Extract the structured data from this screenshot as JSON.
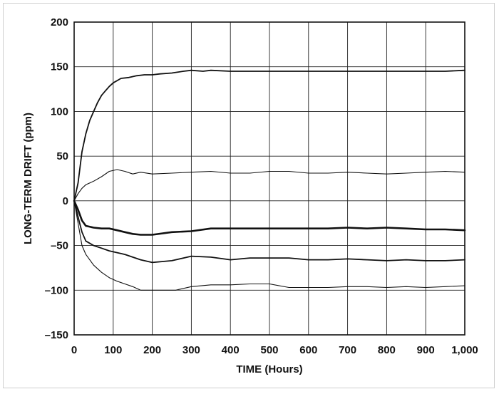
{
  "chart_data": {
    "type": "line",
    "title": "",
    "xlabel": "TIME (Hours)",
    "ylabel": "LONG-TERM DRIFT (ppm)",
    "xlim": [
      0,
      1000
    ],
    "ylim": [
      -150,
      200
    ],
    "grid": true,
    "legend": "none",
    "x_ticks": [
      0,
      100,
      200,
      300,
      400,
      500,
      600,
      700,
      800,
      900,
      1000
    ],
    "x_tick_labels": [
      "0",
      "100",
      "200",
      "300",
      "400",
      "500",
      "600",
      "700",
      "800",
      "900",
      "1,000"
    ],
    "y_ticks": [
      200,
      150,
      100,
      50,
      0,
      -50,
      -100,
      -150
    ],
    "y_tick_labels": [
      "200",
      "150",
      "100",
      "50",
      "0",
      "–50",
      "–100",
      "–150"
    ],
    "series": [
      {
        "weight": 1.8,
        "x": [
          0,
          10,
          20,
          30,
          40,
          50,
          60,
          70,
          80,
          90,
          100,
          120,
          140,
          160,
          180,
          200,
          220,
          250,
          280,
          300,
          330,
          350,
          400,
          450,
          500,
          550,
          600,
          650,
          700,
          750,
          800,
          850,
          900,
          950,
          1000
        ],
        "y": [
          0,
          20,
          55,
          75,
          90,
          100,
          110,
          118,
          123,
          128,
          132,
          137,
          138,
          140,
          141,
          141,
          142,
          143,
          145,
          146,
          145,
          146,
          145,
          145,
          145,
          145,
          145,
          145,
          145,
          145,
          145,
          145,
          145,
          145,
          146
        ]
      },
      {
        "weight": 1.1,
        "x": [
          0,
          10,
          20,
          30,
          50,
          70,
          90,
          110,
          130,
          150,
          170,
          200,
          250,
          300,
          350,
          400,
          450,
          500,
          550,
          600,
          650,
          700,
          750,
          800,
          850,
          900,
          950,
          1000
        ],
        "y": [
          0,
          8,
          14,
          18,
          22,
          27,
          33,
          35,
          33,
          30,
          32,
          30,
          31,
          32,
          33,
          31,
          31,
          33,
          33,
          31,
          31,
          32,
          31,
          30,
          31,
          32,
          33,
          32
        ]
      },
      {
        "weight": 2.6,
        "x": [
          0,
          10,
          20,
          30,
          50,
          70,
          90,
          110,
          130,
          150,
          170,
          200,
          250,
          300,
          350,
          400,
          450,
          500,
          550,
          600,
          650,
          700,
          750,
          800,
          850,
          900,
          950,
          1000
        ],
        "y": [
          0,
          -10,
          -22,
          -28,
          -30,
          -31,
          -31,
          -33,
          -35,
          -37,
          -38,
          -38,
          -35,
          -34,
          -31,
          -31,
          -31,
          -31,
          -31,
          -31,
          -31,
          -30,
          -31,
          -30,
          -31,
          -32,
          -32,
          -33
        ]
      },
      {
        "weight": 1.8,
        "x": [
          0,
          10,
          20,
          30,
          50,
          70,
          90,
          110,
          130,
          150,
          170,
          200,
          250,
          300,
          350,
          400,
          450,
          500,
          550,
          600,
          650,
          700,
          750,
          800,
          850,
          900,
          950,
          1000
        ],
        "y": [
          0,
          -18,
          -35,
          -45,
          -50,
          -53,
          -56,
          -58,
          -60,
          -63,
          -66,
          -69,
          -67,
          -62,
          -63,
          -66,
          -64,
          -64,
          -64,
          -66,
          -66,
          -65,
          -66,
          -67,
          -66,
          -67,
          -67,
          -66
        ]
      },
      {
        "weight": 1.1,
        "x": [
          0,
          10,
          20,
          30,
          50,
          70,
          90,
          110,
          130,
          150,
          170,
          200,
          230,
          260,
          300,
          350,
          400,
          450,
          500,
          550,
          600,
          650,
          700,
          750,
          800,
          850,
          900,
          950,
          1000
        ],
        "y": [
          0,
          -25,
          -50,
          -60,
          -72,
          -80,
          -86,
          -90,
          -93,
          -96,
          -100,
          -100,
          -100,
          -100,
          -96,
          -94,
          -94,
          -93,
          -93,
          -97,
          -97,
          -97,
          -96,
          -96,
          -97,
          -96,
          -97,
          -96,
          -95
        ]
      }
    ]
  }
}
